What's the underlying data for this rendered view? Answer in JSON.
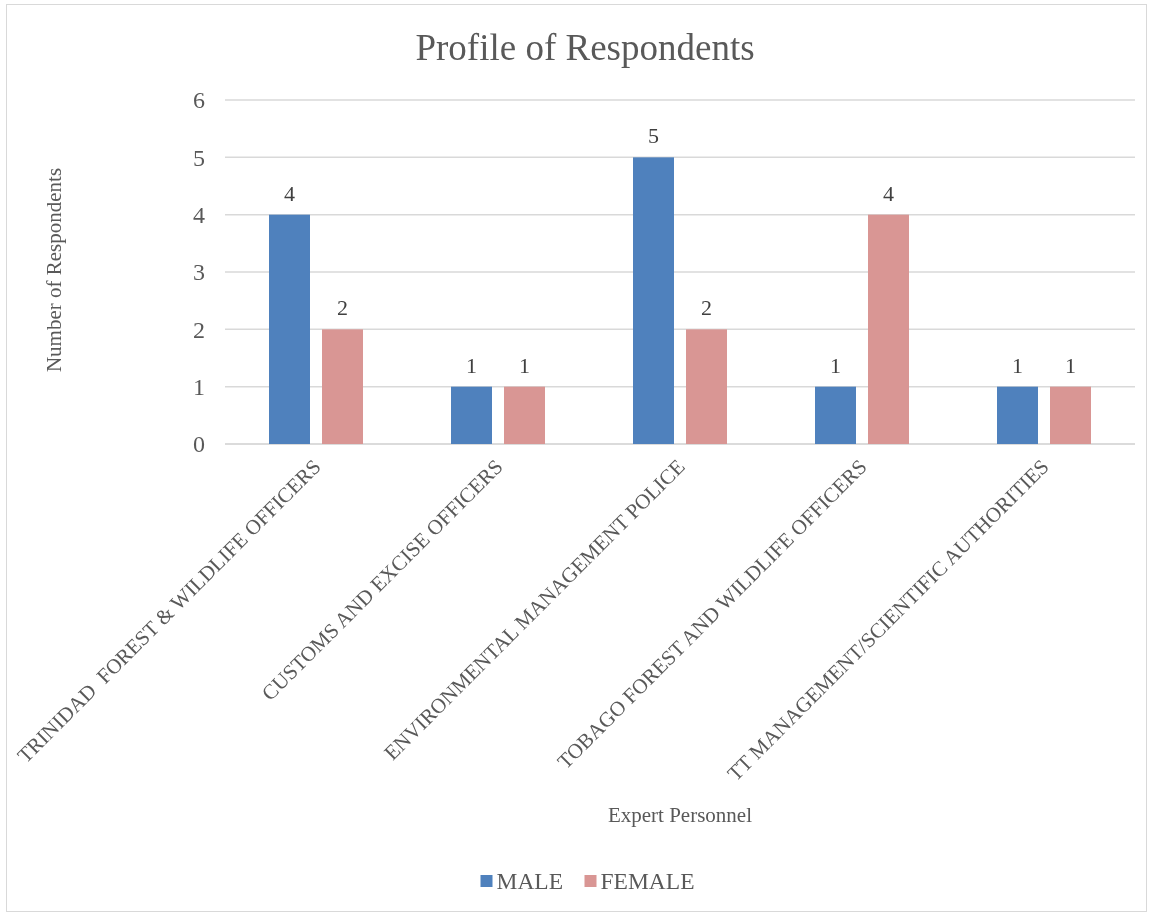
{
  "chart_data": {
    "type": "bar",
    "title": "Profile of Respondents",
    "xlabel": "Expert Personnel",
    "ylabel": "Number of Respondents",
    "categories": [
      "TRINIDAD  FOREST & WILDLIFE OFFICERS",
      "CUSTOMS AND EXCISE OFFICERS",
      "ENVIRONMENTAL MANAGEMENT POLICE",
      "TOBAGO FOREST AND WILDLIFE OFFICERS",
      "TT MANAGEMENT/SCIENTIFIC AUTHORITIES"
    ],
    "series": [
      {
        "name": "MALE",
        "color": "#4f81bd",
        "values": [
          4,
          1,
          5,
          1,
          1
        ]
      },
      {
        "name": "FEMALE",
        "color": "#d99694",
        "values": [
          2,
          1,
          2,
          4,
          1
        ]
      }
    ],
    "ylim": [
      0,
      6
    ],
    "yticks": [
      0,
      1,
      2,
      3,
      4,
      5,
      6
    ],
    "grid": "y",
    "legend": "bottom",
    "data_labels": true
  }
}
